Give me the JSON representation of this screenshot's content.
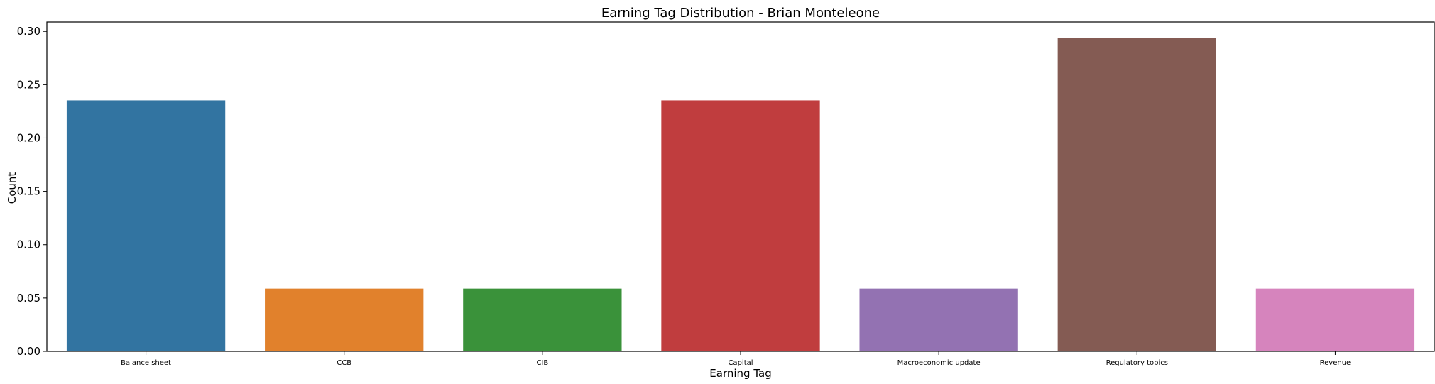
{
  "chart_data": {
    "type": "bar",
    "title": "Earning Tag Distribution - Brian Monteleone",
    "xlabel": "Earning Tag",
    "ylabel": "Count",
    "categories": [
      "Balance sheet",
      "CCB",
      "CIB",
      "Capital",
      "Macroeconomic update",
      "Regulatory topics",
      "Revenue"
    ],
    "values": [
      0.2353,
      0.0588,
      0.0588,
      0.2353,
      0.0588,
      0.2941,
      0.0588
    ],
    "colors": [
      "#3274a1",
      "#e1812c",
      "#3a923a",
      "#c03d3e",
      "#9372b2",
      "#845b53",
      "#d684bd"
    ],
    "ylim": [
      0,
      0.3088
    ],
    "yticks": [
      0.0,
      0.05,
      0.1,
      0.15,
      0.2,
      0.25,
      0.3
    ],
    "ytick_labels": [
      "0.00",
      "0.05",
      "0.10",
      "0.15",
      "0.20",
      "0.25",
      "0.30"
    ],
    "grid": false,
    "legend": "none"
  }
}
